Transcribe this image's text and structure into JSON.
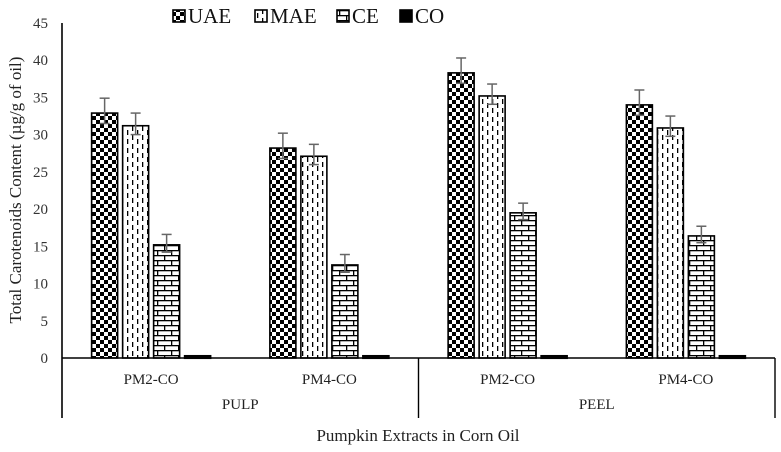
{
  "chart_data": {
    "type": "bar",
    "title": "",
    "xlabel": "Pumpkin Extracts in Corn Oil",
    "ylabel": "Total Carotenoids Content (µg/g of oil)",
    "ylim": [
      0,
      45
    ],
    "yticks": [
      0,
      5,
      10,
      15,
      20,
      25,
      30,
      35,
      40,
      45
    ],
    "grid": false,
    "legend_position": "top",
    "groups": [
      {
        "label": "PULP",
        "categories": [
          "PM2-CO",
          "PM4-CO"
        ]
      },
      {
        "label": "PEEL",
        "categories": [
          "PM2-CO",
          "PM4-CO"
        ]
      }
    ],
    "categories": [
      "PULP PM2-CO",
      "PULP PM4-CO",
      "PEEL PM2-CO",
      "PEEL PM4-CO"
    ],
    "series": [
      {
        "name": "UAE",
        "pattern": "checkerboard",
        "values": [
          32.9,
          28.2,
          38.3,
          34.0
        ],
        "errors": [
          2.0,
          2.0,
          2.0,
          2.0
        ]
      },
      {
        "name": "MAE",
        "pattern": "dashed-vertical",
        "values": [
          31.2,
          27.1,
          35.2,
          30.9
        ],
        "errors": [
          1.7,
          1.6,
          1.6,
          1.6
        ]
      },
      {
        "name": "CE",
        "pattern": "brick",
        "values": [
          15.2,
          12.5,
          19.5,
          16.4
        ],
        "errors": [
          1.4,
          1.4,
          1.3,
          1.3
        ]
      },
      {
        "name": "CO",
        "pattern": "solid-black",
        "values": [
          0.3,
          0.3,
          0.3,
          0.3
        ],
        "errors": [
          0.05,
          0.05,
          0.05,
          0.05
        ]
      }
    ]
  },
  "colors": {
    "bar_outline": "#000000",
    "error_bar": "#666666",
    "axis": "#000000"
  }
}
